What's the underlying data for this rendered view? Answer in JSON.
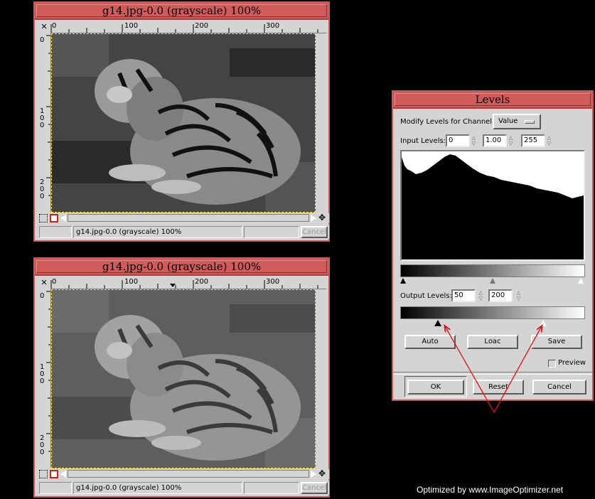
{
  "image_windows": [
    {
      "title": "g14.jpg-0.0 (grayscale) 100%",
      "ruler_h": [
        "0",
        "100",
        "200",
        "300"
      ],
      "ruler_v": [
        "0",
        "100",
        "200"
      ],
      "status": "g14.jpg-0.0 (grayscale) 100%",
      "cancel": "Cancel"
    },
    {
      "title": "g14.jpg-0.0 (grayscale) 100%",
      "ruler_h": [
        "0",
        "100",
        "200",
        "300"
      ],
      "ruler_v": [
        "0",
        "100",
        "200"
      ],
      "status": "g14.jpg-0.0 (grayscale) 100%",
      "cancel": "Cancel"
    }
  ],
  "levels": {
    "title": "Levels",
    "channel_label": "Modify Levels for Channel:",
    "channel_value": "Value",
    "input_label": "Input Levels:",
    "input_low": "0",
    "input_gamma": "1.00",
    "input_high": "255",
    "output_label": "Output Levels:",
    "output_low": "50",
    "output_high": "200",
    "auto": "Auto",
    "load": "Loac",
    "save": "Save",
    "preview": "Preview",
    "ok": "OK",
    "reset": "Reset",
    "cancel": "Cancel"
  },
  "watermark": "Optimized by www.ImageOptimizer.net",
  "colors": {
    "title_bar": "#cf5b5b",
    "annotation_arrow": "#e01010",
    "selection_border": "#ffe600"
  }
}
